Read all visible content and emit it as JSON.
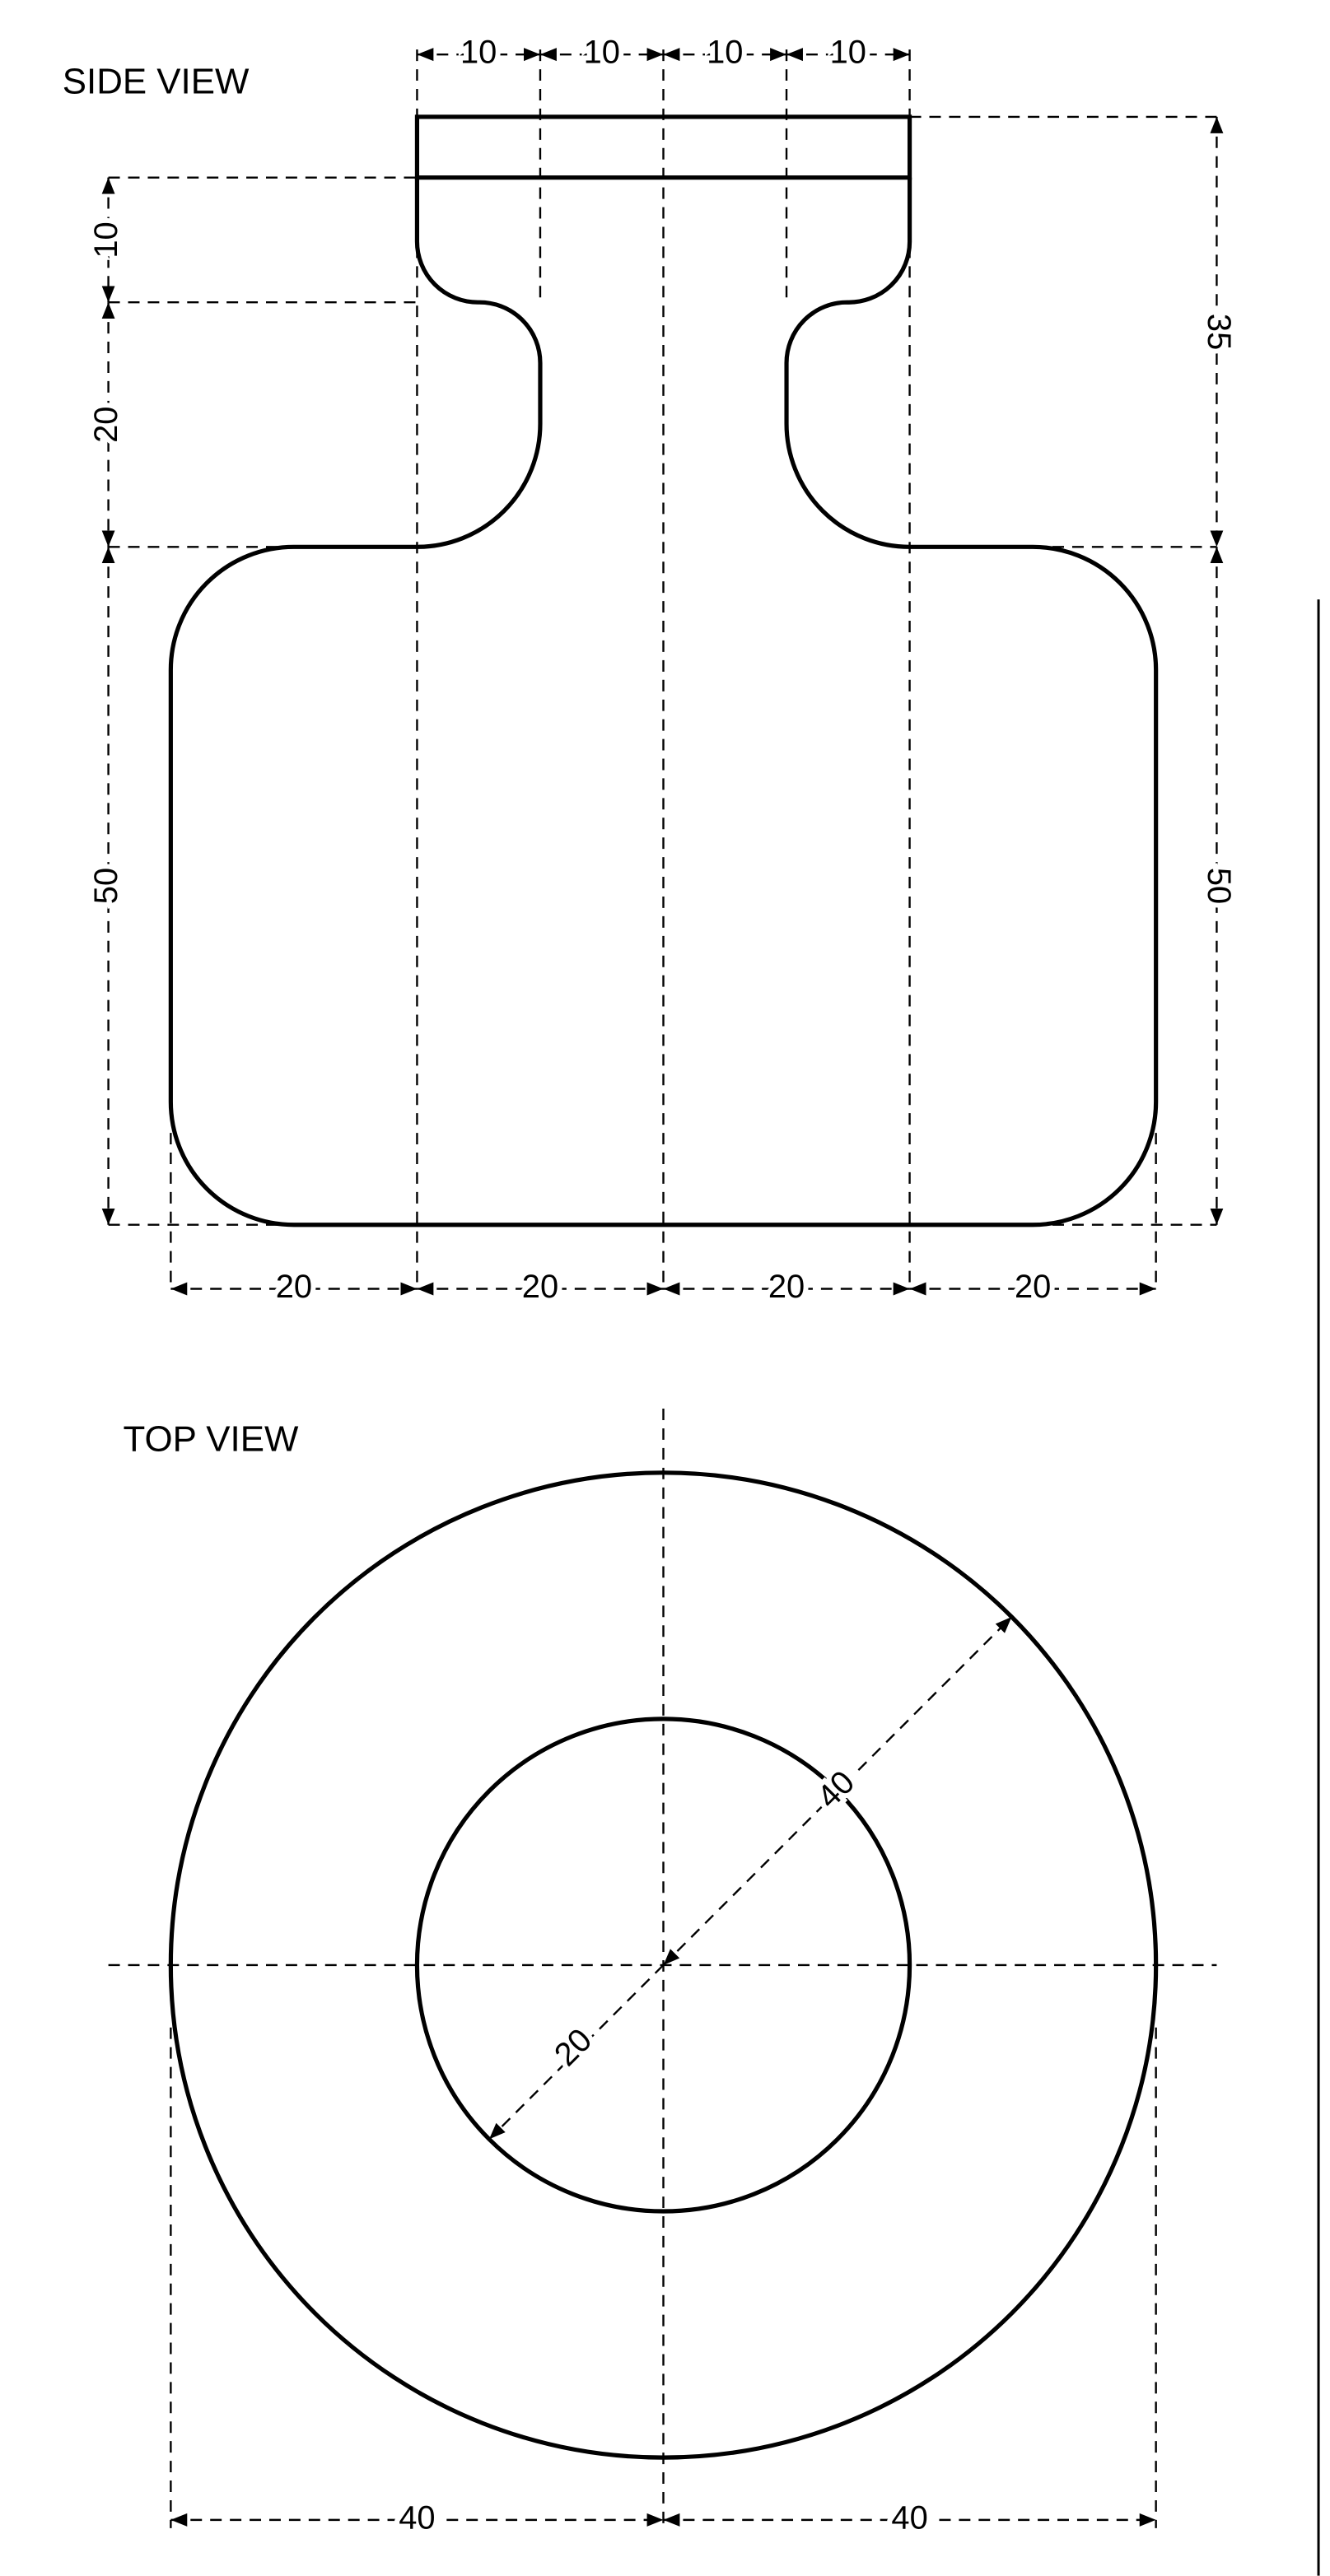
{
  "side_view": {
    "title": "SIDE VIEW",
    "dimensions": {
      "top": [
        10,
        10,
        10,
        10
      ],
      "left": [
        10,
        20,
        50
      ],
      "right": [
        35,
        50
      ],
      "bottom": [
        20,
        20,
        20,
        20
      ]
    }
  },
  "top_view": {
    "title": "TOP VIEW",
    "dimensions": {
      "outer_radius": 40,
      "inner_radius": 20,
      "bottom": [
        40,
        40
      ]
    }
  }
}
